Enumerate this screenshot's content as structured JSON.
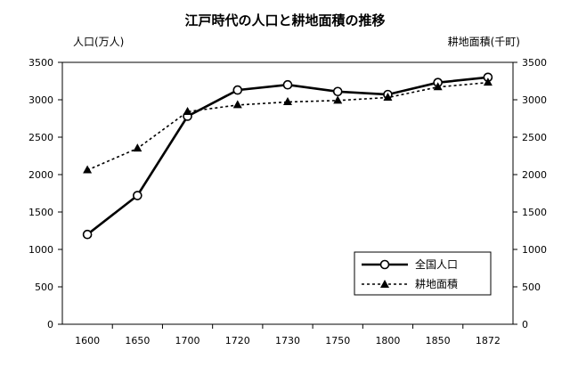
{
  "chart_data": {
    "type": "line",
    "title": "江戸時代の人口と耕地面積の推移",
    "categories": [
      "1600",
      "1650",
      "1700",
      "1720",
      "1730",
      "1750",
      "1800",
      "1850",
      "1872"
    ],
    "left_axis": {
      "label": "人口(万人)",
      "ylim": [
        0,
        3500
      ],
      "ticks": [
        0,
        500,
        1000,
        1500,
        2000,
        2500,
        3000,
        3500
      ]
    },
    "right_axis": {
      "label": "耕地面積(千町)",
      "ylim": [
        0,
        3500
      ],
      "ticks": [
        0,
        500,
        1000,
        1500,
        2000,
        2500,
        3000,
        3500
      ]
    },
    "series": [
      {
        "name": "全国人口",
        "axis": "left",
        "style": "solid",
        "marker": "circle",
        "values": [
          1200,
          1720,
          2780,
          3130,
          3200,
          3110,
          3070,
          3230,
          3300
        ]
      },
      {
        "name": "耕地面積",
        "axis": "right",
        "style": "dotted",
        "marker": "triangle",
        "values": [
          2060,
          2350,
          2840,
          2930,
          2970,
          2990,
          3030,
          3170,
          3230
        ]
      }
    ],
    "grid": false,
    "legend_position": "bottom-right",
    "colors": {
      "line": "#000000",
      "marker_fill_circle": "#ffffff",
      "marker_fill_triangle": "#000000"
    }
  }
}
